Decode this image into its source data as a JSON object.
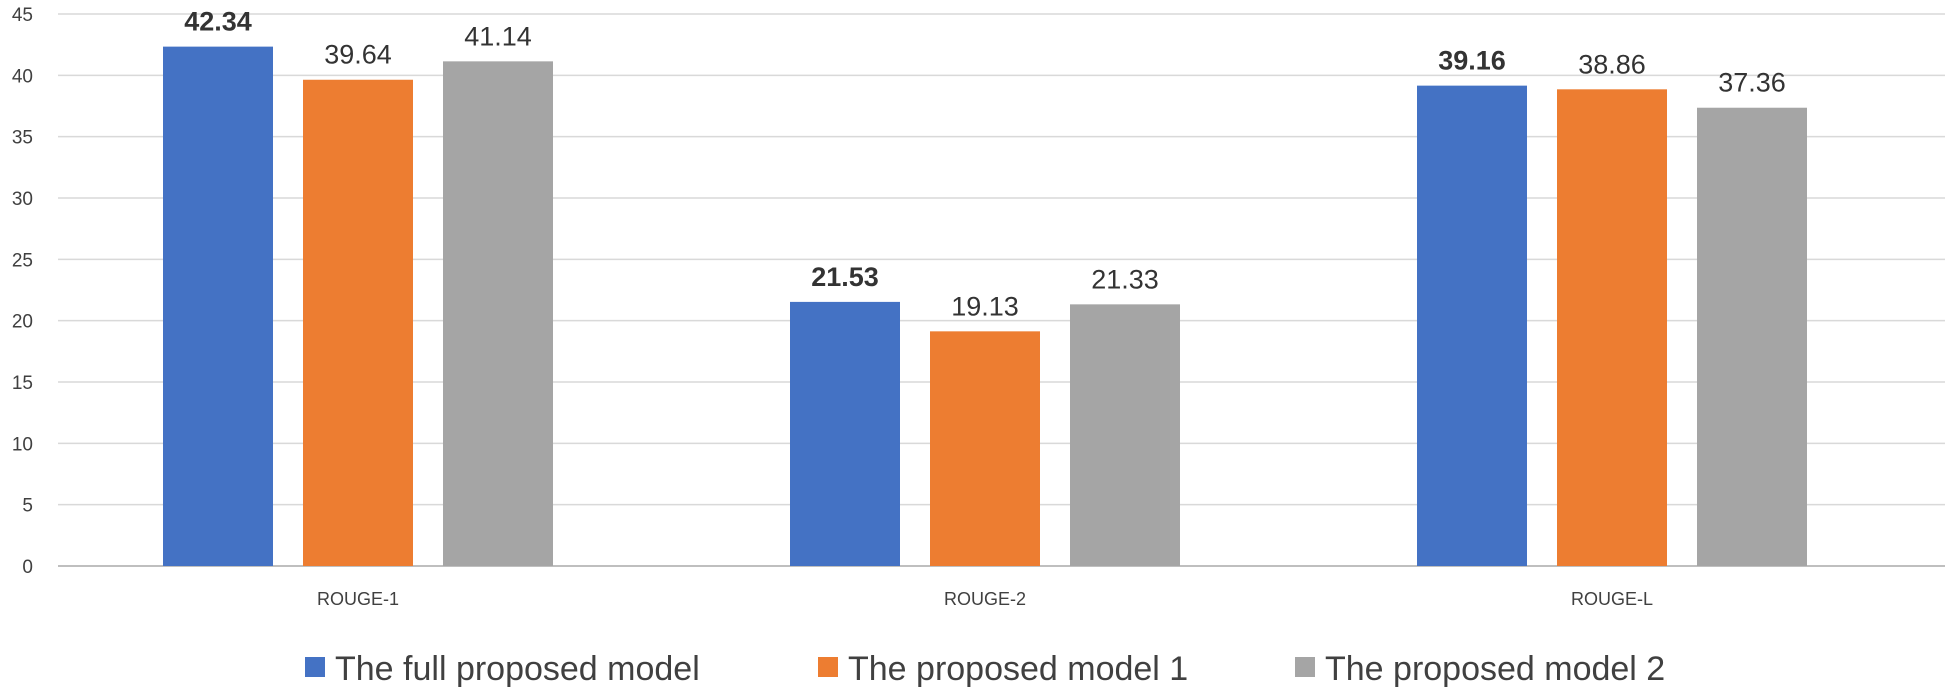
{
  "chart_data": {
    "type": "bar",
    "categories": [
      "ROUGE-1",
      "ROUGE-2",
      "ROUGE-L"
    ],
    "series": [
      {
        "name": "The full proposed model",
        "values": [
          42.34,
          21.53,
          39.16
        ],
        "labels": [
          "42.34",
          "21.53",
          "39.16"
        ],
        "color": "#4472C4",
        "bold_labels": true
      },
      {
        "name": "The proposed model 1",
        "values": [
          39.64,
          19.13,
          38.86
        ],
        "labels": [
          "39.64",
          "19.13",
          "38.86"
        ],
        "color": "#ED7D31",
        "bold_labels": false
      },
      {
        "name": "The proposed model 2",
        "values": [
          41.14,
          21.33,
          37.36
        ],
        "labels": [
          "41.14",
          "21.33",
          "37.36"
        ],
        "color": "#A5A5A5",
        "bold_labels": false
      }
    ],
    "y_ticks": [
      "0",
      "5",
      "10",
      "15",
      "20",
      "25",
      "30",
      "35",
      "40",
      "45"
    ],
    "ylim": [
      0,
      45
    ],
    "grid": true,
    "legend_position": "bottom"
  }
}
